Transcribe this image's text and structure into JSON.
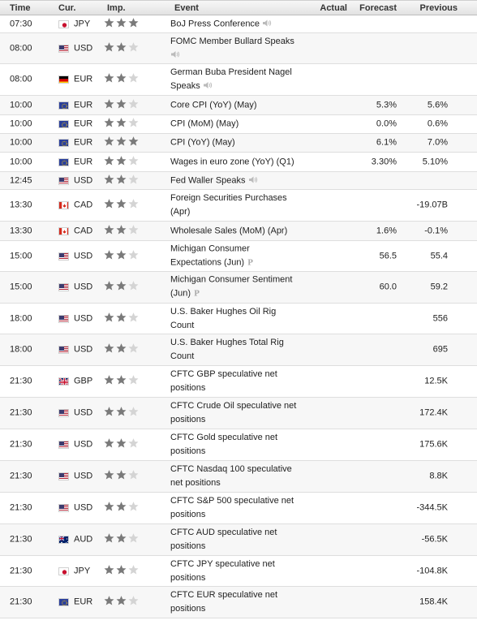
{
  "headers": {
    "time": "Time",
    "currency": "Cur.",
    "importance": "Imp.",
    "event": "Event",
    "actual": "Actual",
    "forecast": "Forecast",
    "previous": "Previous"
  },
  "rows": [
    {
      "time": "07:30",
      "cur": "JPY",
      "flag": "jp",
      "imp": 3,
      "event_lines": [
        "BoJ Press Conference",
        ""
      ],
      "marker": "sound",
      "actual": "",
      "forecast": "",
      "previous": ""
    },
    {
      "time": "08:00",
      "cur": "USD",
      "flag": "us",
      "imp": 2,
      "event_lines": [
        "FOMC Member Bullard Speaks",
        ""
      ],
      "marker": "sound-below",
      "actual": "",
      "forecast": "",
      "previous": ""
    },
    {
      "time": "08:00",
      "cur": "EUR",
      "flag": "de",
      "imp": 2,
      "event_lines": [
        "German Buba President Nagel",
        "Speaks"
      ],
      "marker": "sound",
      "actual": "",
      "forecast": "",
      "previous": ""
    },
    {
      "time": "10:00",
      "cur": "EUR",
      "flag": "eu",
      "imp": 2,
      "event_lines": [
        "Core CPI (YoY) (May)",
        ""
      ],
      "marker": "",
      "actual": "",
      "forecast": "5.3%",
      "previous": "5.6%"
    },
    {
      "time": "10:00",
      "cur": "EUR",
      "flag": "eu",
      "imp": 2,
      "event_lines": [
        "CPI (MoM) (May)",
        ""
      ],
      "marker": "",
      "actual": "",
      "forecast": "0.0%",
      "previous": "0.6%"
    },
    {
      "time": "10:00",
      "cur": "EUR",
      "flag": "eu",
      "imp": 3,
      "event_lines": [
        "CPI (YoY) (May)",
        ""
      ],
      "marker": "",
      "actual": "",
      "forecast": "6.1%",
      "previous": "7.0%"
    },
    {
      "time": "10:00",
      "cur": "EUR",
      "flag": "eu",
      "imp": 2,
      "event_lines": [
        "Wages in euro zone (YoY) (Q1)",
        ""
      ],
      "marker": "",
      "actual": "",
      "forecast": "3.30%",
      "previous": "5.10%"
    },
    {
      "time": "12:45",
      "cur": "USD",
      "flag": "us",
      "imp": 2,
      "event_lines": [
        "Fed Waller Speaks",
        ""
      ],
      "marker": "sound",
      "actual": "",
      "forecast": "",
      "previous": ""
    },
    {
      "time": "13:30",
      "cur": "CAD",
      "flag": "ca",
      "imp": 2,
      "event_lines": [
        "Foreign Securities Purchases",
        "(Apr)"
      ],
      "marker": "",
      "actual": "",
      "forecast": "",
      "previous": "-19.07B"
    },
    {
      "time": "13:30",
      "cur": "CAD",
      "flag": "ca",
      "imp": 2,
      "event_lines": [
        "Wholesale Sales (MoM) (Apr)",
        ""
      ],
      "marker": "",
      "actual": "",
      "forecast": "1.6%",
      "previous": "-0.1%"
    },
    {
      "time": "15:00",
      "cur": "USD",
      "flag": "us",
      "imp": 2,
      "event_lines": [
        "Michigan Consumer",
        "Expectations (Jun)"
      ],
      "marker": "p",
      "actual": "",
      "forecast": "56.5",
      "previous": "55.4"
    },
    {
      "time": "15:00",
      "cur": "USD",
      "flag": "us",
      "imp": 2,
      "event_lines": [
        "Michigan Consumer Sentiment",
        "(Jun)"
      ],
      "marker": "p",
      "actual": "",
      "forecast": "60.0",
      "previous": "59.2"
    },
    {
      "time": "18:00",
      "cur": "USD",
      "flag": "us",
      "imp": 2,
      "event_lines": [
        "U.S. Baker Hughes Oil Rig",
        "Count"
      ],
      "marker": "",
      "actual": "",
      "forecast": "",
      "previous": "556"
    },
    {
      "time": "18:00",
      "cur": "USD",
      "flag": "us",
      "imp": 2,
      "event_lines": [
        "U.S. Baker Hughes Total Rig",
        "Count"
      ],
      "marker": "",
      "actual": "",
      "forecast": "",
      "previous": "695"
    },
    {
      "time": "21:30",
      "cur": "GBP",
      "flag": "gb",
      "imp": 2,
      "event_lines": [
        "CFTC GBP speculative net",
        "positions"
      ],
      "marker": "",
      "actual": "",
      "forecast": "",
      "previous": "12.5K"
    },
    {
      "time": "21:30",
      "cur": "USD",
      "flag": "us",
      "imp": 2,
      "event_lines": [
        "CFTC Crude Oil speculative net",
        "positions"
      ],
      "marker": "",
      "actual": "",
      "forecast": "",
      "previous": "172.4K"
    },
    {
      "time": "21:30",
      "cur": "USD",
      "flag": "us",
      "imp": 2,
      "event_lines": [
        "CFTC Gold speculative net",
        "positions"
      ],
      "marker": "",
      "actual": "",
      "forecast": "",
      "previous": "175.6K"
    },
    {
      "time": "21:30",
      "cur": "USD",
      "flag": "us",
      "imp": 2,
      "event_lines": [
        "CFTC Nasdaq 100 speculative",
        "net positions"
      ],
      "marker": "",
      "actual": "",
      "forecast": "",
      "previous": "8.8K"
    },
    {
      "time": "21:30",
      "cur": "USD",
      "flag": "us",
      "imp": 2,
      "event_lines": [
        "CFTC S&P 500 speculative net",
        "positions"
      ],
      "marker": "",
      "actual": "",
      "forecast": "",
      "previous": "-344.5K"
    },
    {
      "time": "21:30",
      "cur": "AUD",
      "flag": "au",
      "imp": 2,
      "event_lines": [
        "CFTC AUD speculative net",
        "positions"
      ],
      "marker": "",
      "actual": "",
      "forecast": "",
      "previous": "-56.5K"
    },
    {
      "time": "21:30",
      "cur": "JPY",
      "flag": "jp",
      "imp": 2,
      "event_lines": [
        "CFTC JPY speculative net",
        "positions"
      ],
      "marker": "",
      "actual": "",
      "forecast": "",
      "previous": "-104.8K"
    },
    {
      "time": "21:30",
      "cur": "EUR",
      "flag": "eu",
      "imp": 2,
      "event_lines": [
        "CFTC EUR speculative net",
        "positions"
      ],
      "marker": "",
      "actual": "",
      "forecast": "",
      "previous": "158.4K"
    }
  ],
  "colors": {
    "star_filled": "#7a7a7a",
    "star_empty": "#d4d4d4",
    "row_alt": "#f7f7f7",
    "border": "#dedede"
  },
  "icons": {
    "importance": "star-icon",
    "speech": "speaker-icon",
    "preliminary": "preliminary-p-icon"
  }
}
